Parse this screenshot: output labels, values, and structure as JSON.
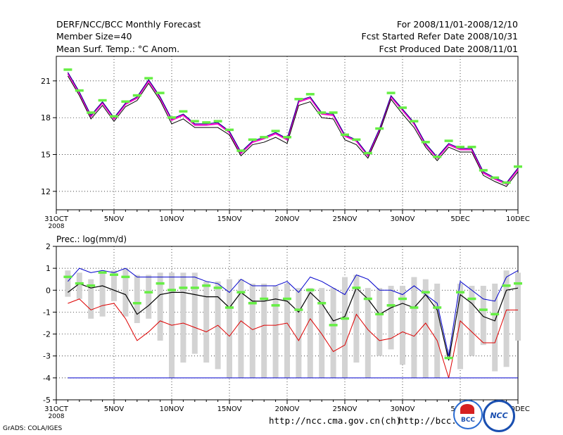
{
  "header": {
    "title": "DERF/NCC/BCC Monthly Forecast",
    "member_size": "Member Size=40",
    "variable": "Mean Surf. Temp.: °C Anom.",
    "period": "For 2008/11/01-2008/12/10",
    "started": "Fcst Started Refer Date 2008/10/31",
    "produced": "Fcst Produced Date 2008/11/01"
  },
  "footer": {
    "url1": "http://ncc.cma.gov.cn(ch)",
    "url2": "http://bcc.c",
    "credit": "GrADS: COLA/IGES",
    "logo_bcc_text": "BCC",
    "logo_ncc_text": "NCC"
  },
  "colors": {
    "temp_line": "#ff00cc",
    "ensemble_line": "#00008b",
    "mean_line": "#000000",
    "upper_line": "#0000cc",
    "lower_line": "#dd0000",
    "obs_marker": "#66ee44",
    "box": "#d3d3d3",
    "grid": "#000000"
  },
  "chart_data": [
    {
      "type": "line",
      "title": "Mean Surf. Temp.: °C Anom.",
      "ylim": [
        10.5,
        23
      ],
      "yticks": [
        12,
        15,
        18,
        21
      ],
      "tick_labels": [
        "31OCT\n2008",
        "5NOV",
        "10NOV",
        "15NOV",
        "20NOV",
        "25NOV",
        "30NOV",
        "5DEC",
        "10DEC"
      ],
      "days": [
        1,
        2,
        3,
        4,
        5,
        6,
        7,
        8,
        9,
        10,
        11,
        12,
        13,
        14,
        15,
        16,
        17,
        18,
        19,
        20,
        21,
        22,
        23,
        24,
        25,
        26,
        27,
        28,
        29,
        30,
        31,
        32,
        33,
        34,
        35,
        36,
        37,
        38,
        39,
        40
      ],
      "series": [
        {
          "name": "ensemble mean",
          "values": [
            21.6,
            20.0,
            18.1,
            19.2,
            17.9,
            19.1,
            19.6,
            21.0,
            19.6,
            17.8,
            18.2,
            17.4,
            17.4,
            17.5,
            16.8,
            15.1,
            16.0,
            16.3,
            16.7,
            16.2,
            19.3,
            19.6,
            18.3,
            18.2,
            16.5,
            16.1,
            14.9,
            17.0,
            19.7,
            18.6,
            17.5,
            15.8,
            14.7,
            15.8,
            15.4,
            15.4,
            13.5,
            13.0,
            12.6,
            13.8
          ]
        },
        {
          "name": "members upper",
          "values": [
            21.7,
            20.1,
            18.2,
            19.3,
            18.0,
            19.2,
            19.7,
            21.1,
            19.7,
            17.9,
            18.3,
            17.5,
            17.5,
            17.6,
            16.9,
            15.2,
            16.1,
            16.4,
            16.8,
            16.3,
            19.4,
            19.7,
            18.4,
            18.3,
            16.6,
            16.2,
            15.0,
            17.1,
            19.8,
            18.7,
            17.6,
            15.9,
            14.8,
            15.9,
            15.5,
            15.5,
            13.6,
            13.1,
            12.7,
            13.9
          ]
        },
        {
          "name": "members lower",
          "values": [
            21.4,
            19.8,
            17.9,
            19.0,
            17.7,
            18.9,
            19.4,
            20.8,
            19.4,
            17.5,
            17.9,
            17.2,
            17.2,
            17.2,
            16.6,
            14.9,
            15.8,
            16.0,
            16.4,
            15.9,
            19.0,
            19.3,
            18.0,
            17.9,
            16.2,
            15.8,
            14.7,
            16.8,
            19.5,
            18.3,
            17.2,
            15.6,
            14.5,
            15.6,
            15.2,
            15.2,
            13.3,
            12.8,
            12.4,
            13.6
          ]
        },
        {
          "name": "observed",
          "values": [
            21.9,
            20.2,
            18.4,
            19.4,
            18.1,
            19.3,
            19.8,
            21.2,
            20.0,
            18.0,
            18.5,
            17.7,
            17.6,
            17.7,
            17.0,
            15.3,
            16.2,
            16.4,
            16.9,
            16.4,
            19.5,
            19.9,
            18.4,
            18.4,
            16.6,
            16.2,
            15.1,
            17.1,
            20.0,
            18.8,
            17.7,
            16.0,
            14.8,
            16.1,
            15.6,
            15.6,
            13.7,
            13.1,
            12.7,
            14.0
          ]
        }
      ]
    },
    {
      "type": "line",
      "title": "Prec.: log(mm/d)",
      "ylim": [
        -5,
        2
      ],
      "yticks": [
        -5,
        -4,
        -3,
        -2,
        -1,
        0,
        1,
        2
      ],
      "tick_labels": [
        "31OCT\n2008",
        "5NOV",
        "10NOV",
        "15NOV",
        "20NOV",
        "25NOV",
        "30NOV",
        "5DEC",
        "10DEC"
      ],
      "days": [
        1,
        2,
        3,
        4,
        5,
        6,
        7,
        8,
        9,
        10,
        11,
        12,
        13,
        14,
        15,
        16,
        17,
        18,
        19,
        20,
        21,
        22,
        23,
        24,
        25,
        26,
        27,
        28,
        29,
        30,
        31,
        32,
        33,
        34,
        35,
        36,
        37,
        38,
        39,
        40
      ],
      "boxes": {
        "low": [
          -0.3,
          -0.4,
          -1.3,
          -1.2,
          -0.5,
          -1.2,
          -1.5,
          -1.3,
          -2.3,
          -4.0,
          -3.3,
          -2.9,
          -3.3,
          -3.6,
          -4.0,
          -4.0,
          -4.0,
          -4.0,
          -4.0,
          -4.0,
          -4.0,
          -4.0,
          -4.0,
          -4.0,
          -4.0,
          -3.3,
          -4.0,
          -3.0,
          -2.7,
          -3.4,
          -4.0,
          -4.0,
          -4.0,
          -3.0,
          -3.6,
          -3.0,
          -2.5,
          -3.7,
          -3.5,
          -2.3
        ],
        "high": [
          0.9,
          0.8,
          0.5,
          0.8,
          0.9,
          1.0,
          0.7,
          0.7,
          0.8,
          0.8,
          0.8,
          0.8,
          0.4,
          0.4,
          0.5,
          0.5,
          0.3,
          0.3,
          0.2,
          0.3,
          0.1,
          0.1,
          0.1,
          0.1,
          0.6,
          0.7,
          0.1,
          0.1,
          0.2,
          0.2,
          0.6,
          0.5,
          0.3,
          -2.7,
          0.3,
          0.2,
          0.2,
          0.3,
          0.9,
          0.8
        ]
      },
      "series": [
        {
          "name": "upper",
          "values": [
            0.4,
            1.0,
            0.8,
            0.9,
            0.8,
            1.0,
            0.6,
            0.6,
            0.6,
            0.6,
            0.6,
            0.6,
            0.4,
            0.3,
            -0.1,
            0.5,
            0.2,
            0.2,
            0.2,
            0.4,
            -0.1,
            0.6,
            0.4,
            0.1,
            -0.2,
            0.7,
            0.5,
            0.0,
            0.0,
            -0.2,
            0.2,
            -0.2,
            -0.6,
            -3.0,
            0.4,
            0.0,
            -0.4,
            -0.5,
            0.6,
            0.9
          ]
        },
        {
          "name": "ensemble mean",
          "values": [
            -0.1,
            0.3,
            0.1,
            0.2,
            0.0,
            -0.2,
            -1.1,
            -0.7,
            -0.2,
            -0.1,
            -0.1,
            -0.2,
            -0.3,
            -0.3,
            -0.8,
            -0.1,
            -0.5,
            -0.5,
            -0.4,
            -0.5,
            -1.0,
            -0.1,
            -0.6,
            -1.4,
            -1.2,
            0.1,
            -0.4,
            -1.1,
            -0.8,
            -0.6,
            -0.8,
            -0.2,
            -0.9,
            -3.2,
            -0.2,
            -0.6,
            -1.2,
            -1.4,
            0.0,
            0.1
          ]
        },
        {
          "name": "lower",
          "values": [
            -0.6,
            -0.4,
            -0.9,
            -0.7,
            -0.6,
            -1.3,
            -2.3,
            -1.9,
            -1.4,
            -1.6,
            -1.5,
            -1.7,
            -1.9,
            -1.6,
            -2.1,
            -1.4,
            -1.8,
            -1.6,
            -1.6,
            -1.5,
            -2.3,
            -1.3,
            -2.0,
            -2.8,
            -2.5,
            -1.1,
            -1.8,
            -2.3,
            -2.2,
            -1.9,
            -2.1,
            -1.5,
            -2.3,
            -4.0,
            -1.4,
            -1.9,
            -2.4,
            -2.4,
            -0.9,
            -0.9
          ]
        },
        {
          "name": "climatology",
          "values": [
            -4,
            -4,
            -4,
            -4,
            -4,
            -4,
            -4,
            -4,
            -4,
            -4,
            -4,
            -4,
            -4,
            -4,
            -4,
            -4,
            -4,
            -4,
            -4,
            -4,
            -4,
            -4,
            -4,
            -4,
            -4,
            -4,
            -4,
            -4,
            -4,
            -4,
            -4,
            -4,
            -4,
            -4,
            -4,
            -4,
            -4,
            -4,
            -4,
            -4
          ]
        },
        {
          "name": "observed",
          "values": [
            0.6,
            0.3,
            0.2,
            0.8,
            0.7,
            0.6,
            -0.6,
            -0.1,
            0.3,
            0.0,
            0.1,
            0.1,
            0.2,
            0.1,
            -0.8,
            -0.1,
            -0.6,
            -0.4,
            -0.7,
            -0.4,
            -0.9,
            0.0,
            -0.6,
            -1.6,
            -1.3,
            0.1,
            -0.4,
            -1.1,
            -0.7,
            -0.4,
            -0.8,
            -0.1,
            -0.8,
            -3.1,
            -0.1,
            -0.4,
            -0.9,
            -1.1,
            0.2,
            0.3
          ]
        }
      ]
    }
  ]
}
